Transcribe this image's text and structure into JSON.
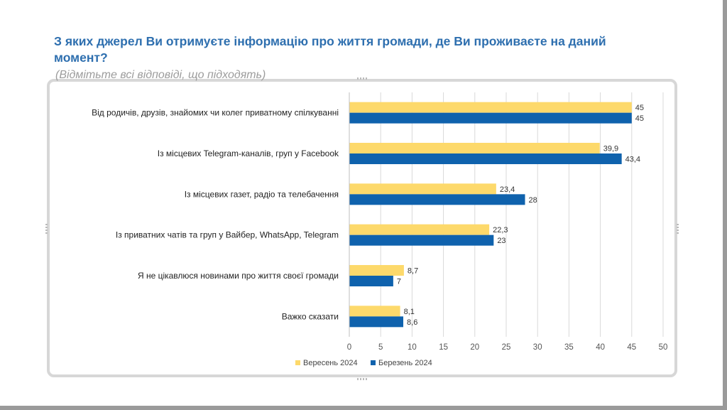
{
  "header": {
    "title": "З яких джерел Ви отримуєте інформацію про життя громади, де Ви проживаєте на даний момент?",
    "subtitle": "(Відмітьте всі відповіді, що підходять)"
  },
  "colors": {
    "series_2024_sep": "#fdd96b",
    "series_2024_mar": "#0f62ad",
    "title": "#2e6faf",
    "grid": "#d9d9d9"
  },
  "chart_data": {
    "type": "bar",
    "orientation": "horizontal",
    "categories": [
      "Від родичів, друзів, знайомих чи колег приватному спілкуванні",
      "Із місцевих Telegram-каналів, груп у Facebook",
      "Із місцевих газет, радіо та телебачення",
      "Із приватних чатів та груп у Вайбер, WhatsApp, Telegram",
      "Я не цікавлюся новинами про життя своєї громади",
      "Важко сказати"
    ],
    "series": [
      {
        "name": "Вересень 2024",
        "color": "#fdd96b",
        "values": [
          45,
          39.9,
          23.4,
          22.3,
          8.7,
          8.1
        ],
        "labels": [
          "45",
          "39,9",
          "23,4",
          "22,3",
          "8,7",
          "8,1"
        ]
      },
      {
        "name": "Березень 2024",
        "color": "#0f62ad",
        "values": [
          45,
          43.4,
          28,
          23,
          7,
          8.6
        ],
        "labels": [
          "45",
          "43,4",
          "28",
          "23",
          "7",
          "8,6"
        ]
      }
    ],
    "xlim": [
      0,
      50
    ],
    "xticks": [
      0,
      5,
      10,
      15,
      20,
      25,
      30,
      35,
      40,
      45,
      50
    ],
    "grid": true,
    "legend_position": "bottom"
  }
}
